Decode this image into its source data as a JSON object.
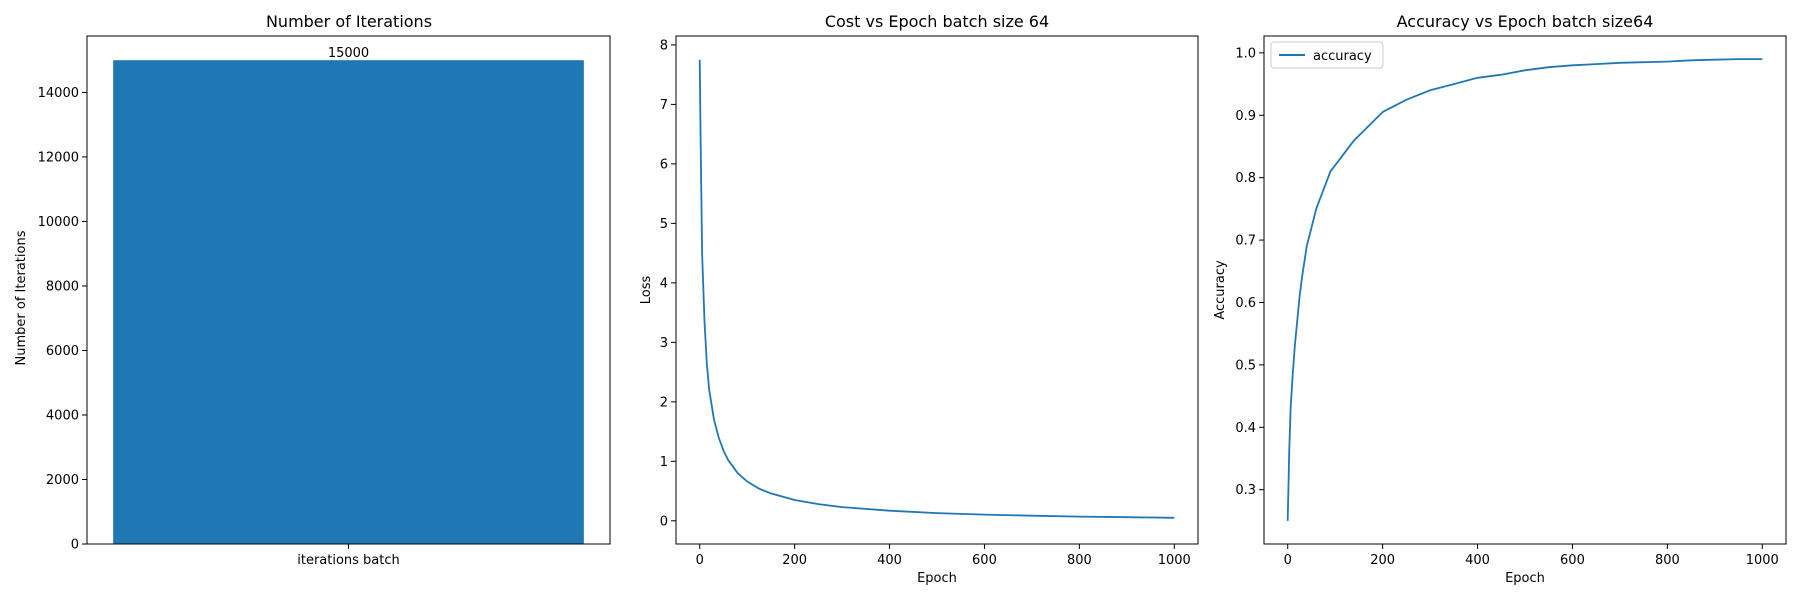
{
  "colors": {
    "series": "#1f77b4",
    "axis": "#000000",
    "background": "#ffffff"
  },
  "chart_data": [
    {
      "type": "bar",
      "title": "Number of Iterations",
      "xlabel": "",
      "ylabel": "Number of Iterations",
      "categories": [
        "iterations batch"
      ],
      "values": [
        15000
      ],
      "data_labels": [
        "15000"
      ],
      "ylim": [
        0,
        15750
      ],
      "yticks": [
        0,
        2000,
        4000,
        6000,
        8000,
        10000,
        12000,
        14000
      ],
      "grid": false,
      "legend": null
    },
    {
      "type": "line",
      "title": "Cost vs Epoch batch size 64",
      "xlabel": "Epoch",
      "ylabel": "Loss",
      "xlim": [
        -50,
        1050
      ],
      "ylim": [
        -0.39,
        8.15
      ],
      "xticks": [
        0,
        200,
        400,
        600,
        800,
        1000
      ],
      "yticks": [
        0,
        1,
        2,
        3,
        4,
        5,
        6,
        7,
        8
      ],
      "grid": false,
      "legend": null,
      "series": [
        {
          "x": [
            0,
            2,
            5,
            10,
            15,
            20,
            30,
            40,
            50,
            60,
            80,
            100,
            125,
            150,
            200,
            250,
            300,
            400,
            500,
            600,
            700,
            800,
            900,
            1000
          ],
          "values": [
            7.75,
            6.3,
            4.5,
            3.35,
            2.65,
            2.2,
            1.7,
            1.4,
            1.18,
            1.02,
            0.8,
            0.66,
            0.54,
            0.46,
            0.35,
            0.28,
            0.23,
            0.17,
            0.13,
            0.105,
            0.085,
            0.07,
            0.06,
            0.05
          ]
        }
      ]
    },
    {
      "type": "line",
      "title": "Accuracy vs Epoch batch size64",
      "xlabel": "Epoch",
      "ylabel": "Accuracy",
      "xlim": [
        -50,
        1050
      ],
      "ylim": [
        0.213,
        1.027
      ],
      "xticks": [
        0,
        200,
        400,
        600,
        800,
        1000
      ],
      "yticks": [
        0.3,
        0.4,
        0.5,
        0.6,
        0.7,
        0.8,
        0.9,
        1.0
      ],
      "grid": false,
      "legend": "upper left",
      "series": [
        {
          "name": "accuracy",
          "x": [
            0,
            3,
            6,
            10,
            15,
            20,
            25,
            30,
            40,
            50,
            60,
            70,
            80,
            90,
            100,
            120,
            140,
            160,
            180,
            200,
            250,
            300,
            350,
            400,
            450,
            500,
            550,
            600,
            650,
            700,
            750,
            800,
            850,
            900,
            950,
            1000
          ],
          "values": [
            0.25,
            0.36,
            0.43,
            0.48,
            0.53,
            0.57,
            0.61,
            0.64,
            0.69,
            0.72,
            0.75,
            0.77,
            0.79,
            0.81,
            0.82,
            0.84,
            0.86,
            0.875,
            0.89,
            0.905,
            0.925,
            0.94,
            0.95,
            0.96,
            0.965,
            0.972,
            0.977,
            0.98,
            0.982,
            0.984,
            0.985,
            0.986,
            0.988,
            0.989,
            0.99,
            0.99
          ]
        }
      ]
    }
  ]
}
